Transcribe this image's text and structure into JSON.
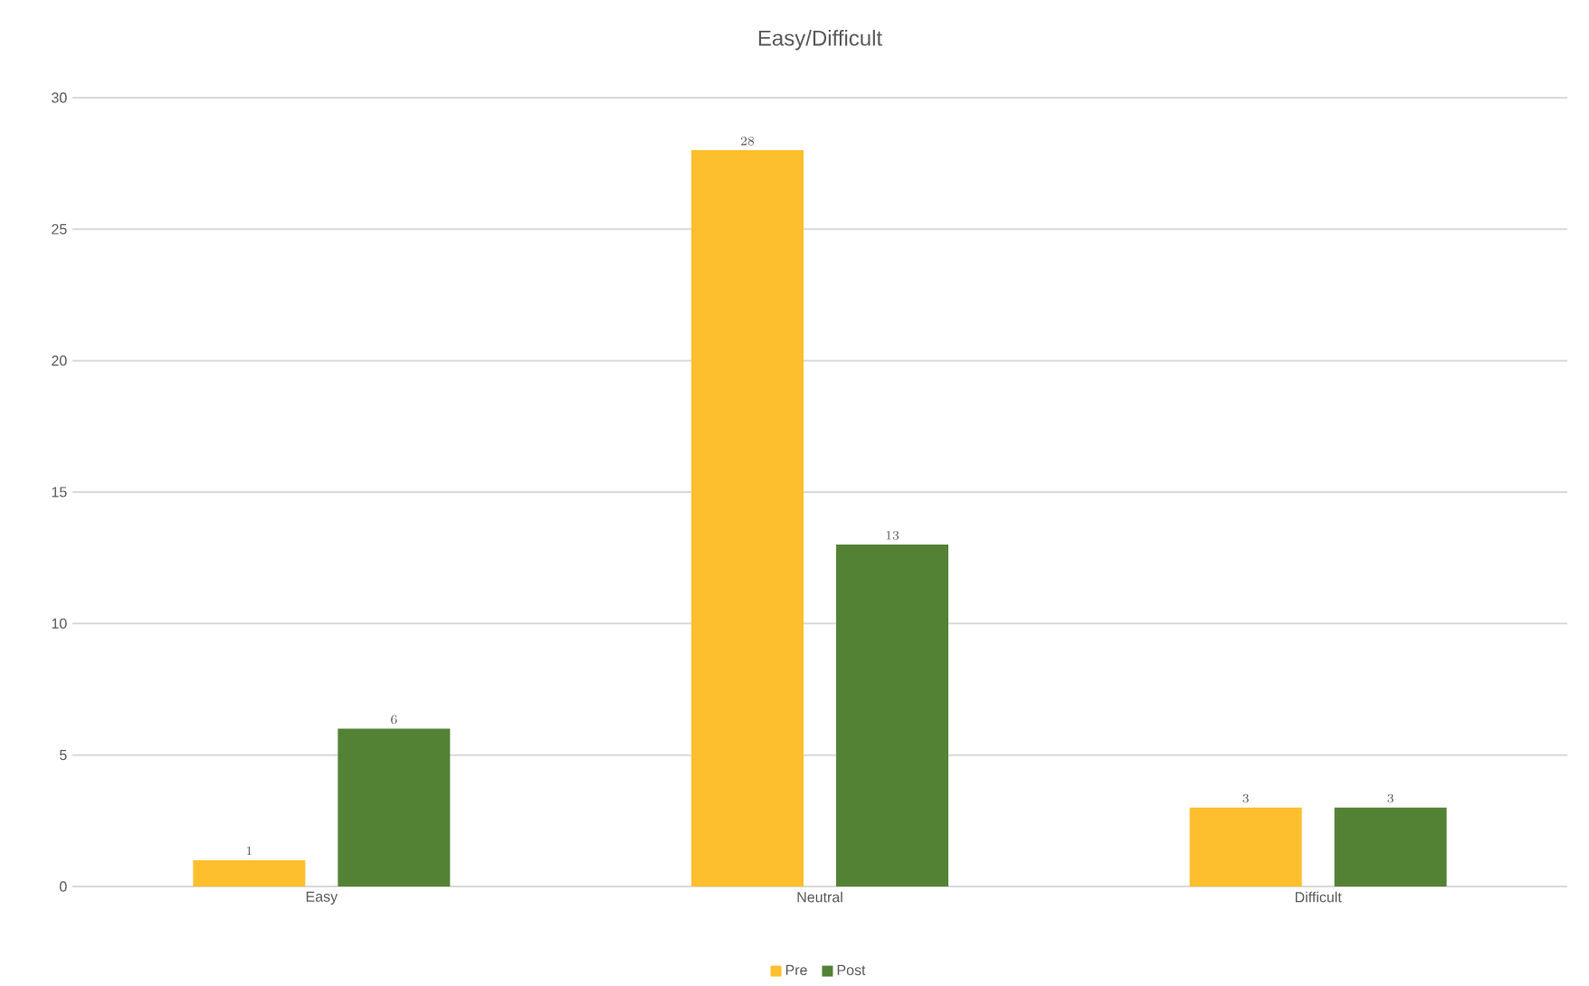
{
  "chart_data": {
    "type": "bar",
    "title": "Easy/Difficult",
    "categories": [
      "Easy",
      "Neutral",
      "Difficult"
    ],
    "series": [
      {
        "name": "Pre",
        "color": "#fdbf2d",
        "values": [
          1,
          28,
          3
        ]
      },
      {
        "name": "Post",
        "color": "#548235",
        "values": [
          6,
          13,
          3
        ]
      }
    ],
    "ylim": [
      0,
      30
    ],
    "yticks": [
      0,
      5,
      10,
      15,
      20,
      25,
      30
    ],
    "grid": "y",
    "legend": "bottom",
    "data_labels": true
  }
}
